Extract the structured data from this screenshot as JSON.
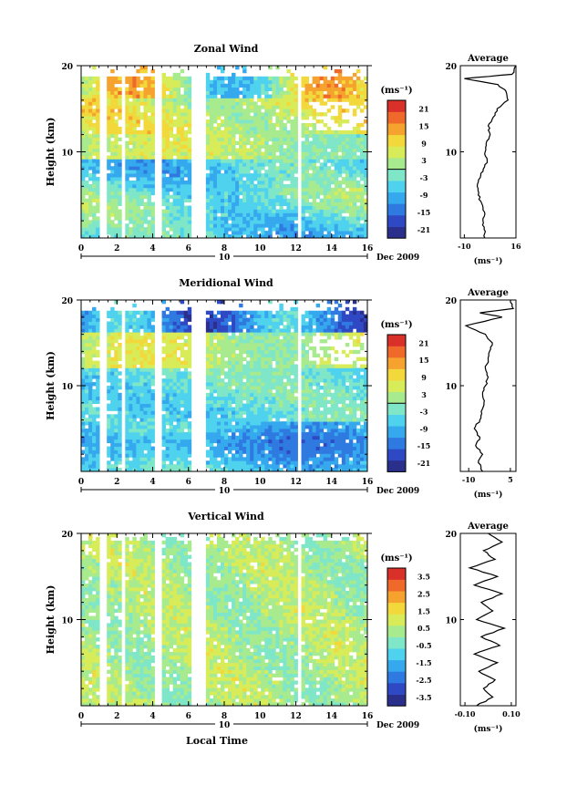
{
  "chart_data": [
    {
      "type": "heatmap",
      "title": "Zonal Wind",
      "ylabel": "Height (km)",
      "xticks": [
        "0",
        "2",
        "4",
        "6",
        "8",
        "10",
        "12",
        "14",
        "16"
      ],
      "yticks": [
        "10",
        "20"
      ],
      "xlim": [
        0,
        16
      ],
      "ylim": [
        0,
        20
      ],
      "date_axis": {
        "tick": "10",
        "label": "Dec 2009"
      },
      "colorbar": {
        "unit": "(ms⁻¹)",
        "ticks": [
          "21",
          "15",
          "9",
          "3",
          "-3",
          "-9",
          "-15",
          "-21"
        ],
        "min": -24,
        "max": 24
      },
      "average": {
        "title": "Average",
        "xunit": "(ms⁻¹)",
        "xticks": [
          "-10",
          "16"
        ],
        "yticks": [
          "10",
          "20"
        ],
        "xlim": [
          -12,
          16
        ],
        "profile": [
          [
            0.3,
            0
          ],
          [
            0.0,
            1
          ],
          [
            -0.6,
            2
          ],
          [
            0.2,
            3
          ],
          [
            -1.2,
            4
          ],
          [
            -3.0,
            5
          ],
          [
            -3.5,
            6
          ],
          [
            -2.0,
            7
          ],
          [
            -0.5,
            8
          ],
          [
            1.5,
            9
          ],
          [
            0.5,
            10
          ],
          [
            1.0,
            11
          ],
          [
            3.0,
            12
          ],
          [
            2.0,
            13
          ],
          [
            4.5,
            14
          ],
          [
            6.5,
            15
          ],
          [
            12.0,
            16
          ],
          [
            11.0,
            17
          ],
          [
            7.0,
            17.8
          ],
          [
            -10.0,
            18.5
          ],
          [
            14.0,
            19
          ],
          [
            16.0,
            20
          ]
        ]
      }
    },
    {
      "type": "heatmap",
      "title": "Meridional Wind",
      "ylabel": "Height (km)",
      "xticks": [
        "0",
        "2",
        "4",
        "6",
        "8",
        "10",
        "12",
        "14",
        "16"
      ],
      "yticks": [
        "10",
        "20"
      ],
      "xlim": [
        0,
        16
      ],
      "ylim": [
        0,
        20
      ],
      "date_axis": {
        "tick": "10",
        "label": "Dec 2009"
      },
      "colorbar": {
        "unit": "(ms⁻¹)",
        "ticks": [
          "21",
          "15",
          "9",
          "3",
          "-3",
          "-9",
          "-15",
          "-21"
        ],
        "min": -24,
        "max": 24
      },
      "average": {
        "title": "Average",
        "xunit": "(ms⁻¹)",
        "xticks": [
          "-10",
          "5"
        ],
        "yticks": [
          "10",
          "20"
        ],
        "xlim": [
          -13,
          7
        ],
        "profile": [
          [
            -5,
            0
          ],
          [
            -6.5,
            1
          ],
          [
            -5,
            2
          ],
          [
            -7.5,
            3
          ],
          [
            -6,
            4
          ],
          [
            -8,
            5
          ],
          [
            -6,
            6
          ],
          [
            -5.5,
            7
          ],
          [
            -4.5,
            8
          ],
          [
            -5,
            9
          ],
          [
            -4,
            10
          ],
          [
            -3,
            11
          ],
          [
            -4,
            12
          ],
          [
            -3,
            13
          ],
          [
            -2.5,
            14
          ],
          [
            -1.5,
            15
          ],
          [
            -4,
            16
          ],
          [
            -11,
            17
          ],
          [
            2,
            18
          ],
          [
            -6,
            18.5
          ],
          [
            6,
            19
          ],
          [
            5,
            20
          ]
        ]
      }
    },
    {
      "type": "heatmap",
      "title": "Vertical Wind",
      "xlabel": "Local Time",
      "ylabel": "Height (km)",
      "xticks": [
        "0",
        "2",
        "4",
        "6",
        "8",
        "10",
        "12",
        "14",
        "16"
      ],
      "yticks": [
        "10",
        "20"
      ],
      "xlim": [
        0,
        16
      ],
      "ylim": [
        0,
        20
      ],
      "date_axis": {
        "tick": "10",
        "label": "Dec 2009"
      },
      "colorbar": {
        "unit": "(ms⁻¹)",
        "ticks": [
          "3.5",
          "2.5",
          "1.5",
          "0.5",
          "-0.5",
          "-1.5",
          "-2.5",
          "-3.5"
        ],
        "min": -4,
        "max": 4
      },
      "average": {
        "title": "Average",
        "xunit": "(ms⁻¹)",
        "xticks": [
          "-0.10",
          "0.10"
        ],
        "yticks": [
          "10",
          "20"
        ],
        "xlim": [
          -0.12,
          0.12
        ],
        "profile": [
          [
            -0.05,
            0
          ],
          [
            0.02,
            1
          ],
          [
            -0.02,
            2
          ],
          [
            0.03,
            3
          ],
          [
            -0.04,
            4
          ],
          [
            0.04,
            5
          ],
          [
            -0.06,
            6
          ],
          [
            0.05,
            7
          ],
          [
            -0.03,
            8
          ],
          [
            0.07,
            9
          ],
          [
            -0.05,
            10
          ],
          [
            0.02,
            11
          ],
          [
            -0.03,
            12
          ],
          [
            0.06,
            13
          ],
          [
            -0.06,
            14
          ],
          [
            0.04,
            15
          ],
          [
            -0.08,
            16
          ],
          [
            0.03,
            17
          ],
          [
            -0.02,
            18
          ],
          [
            0.06,
            19
          ],
          [
            0.0,
            20
          ]
        ]
      }
    }
  ]
}
